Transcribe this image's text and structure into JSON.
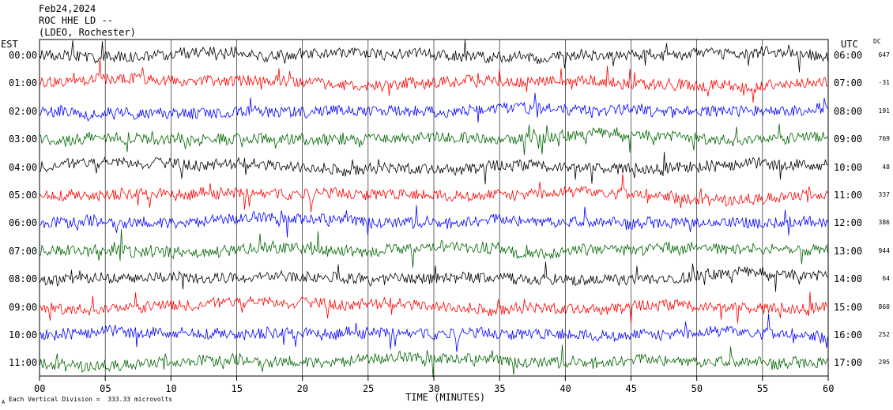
{
  "header": {
    "date": "Feb24,2024",
    "station": "ROC HHE LD --",
    "network": "(LDEO, Rochester)"
  },
  "left_timezone": "EST",
  "right_timezone": "UTC",
  "dc_header": "DC",
  "footer": {
    "scale_note": "Each Vertical Division =  333.33 microvolts",
    "mark": "A"
  },
  "chart_data": {
    "type": "line",
    "title": "",
    "xlabel": "TIME (MINUTES)",
    "xlim": [
      0,
      60
    ],
    "x_ticks": [
      "00",
      "05",
      "10",
      "15",
      "20",
      "25",
      "30",
      "35",
      "40",
      "45",
      "50",
      "55",
      "60"
    ],
    "rows": [
      {
        "left": "00:00",
        "right": "06:00",
        "dc": "647",
        "color": "#000000"
      },
      {
        "left": "01:00",
        "right": "07:00",
        "dc": "-31",
        "color": "#ff0000"
      },
      {
        "left": "02:00",
        "right": "08:00",
        "dc": "191",
        "color": "#0000ff"
      },
      {
        "left": "03:00",
        "right": "09:00",
        "dc": "769",
        "color": "#006400"
      },
      {
        "left": "04:00",
        "right": "10:00",
        "dc": "48",
        "color": "#000000"
      },
      {
        "left": "05:00",
        "right": "11:00",
        "dc": "337",
        "color": "#ff0000"
      },
      {
        "left": "06:00",
        "right": "12:00",
        "dc": "386",
        "color": "#0000ff"
      },
      {
        "left": "07:00",
        "right": "13:00",
        "dc": "944",
        "color": "#006400"
      },
      {
        "left": "08:00",
        "right": "14:00",
        "dc": "64",
        "color": "#000000"
      },
      {
        "left": "09:00",
        "right": "15:00",
        "dc": "860",
        "color": "#ff0000"
      },
      {
        "left": "10:00",
        "right": "16:00",
        "dc": "252",
        "color": "#0000ff"
      },
      {
        "left": "11:00",
        "right": "17:00",
        "dc": "295",
        "color": "#006400"
      }
    ]
  }
}
